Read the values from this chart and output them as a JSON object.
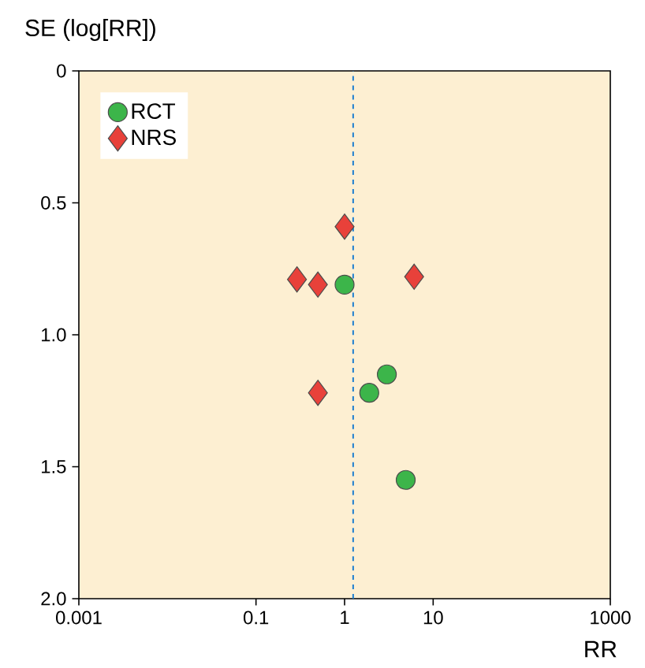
{
  "chart_data": {
    "type": "scatter",
    "xlabel": "RR",
    "ylabel": "SE (log[RR])",
    "log": "x",
    "xlim": [
      0.001,
      1000
    ],
    "ylim": [
      2,
      0
    ],
    "xticks": [
      0.001,
      0.1,
      1,
      10,
      1000
    ],
    "yticks": [
      0,
      0.5,
      {
        "value": 1,
        "label": "1.0"
      },
      1.5,
      {
        "value": 2,
        "label": "2.0"
      }
    ],
    "grid": false,
    "legend": "top left",
    "ref_lines": [
      {
        "axis": "x",
        "value": 1.25,
        "color": "#1f7fd0",
        "line_style": "dashed"
      }
    ],
    "series": [
      {
        "name": "RCT",
        "color": "#3cb54a",
        "marker": "circle",
        "x": [
          1.0,
          1.9,
          3.0,
          4.9
        ],
        "values": [
          0.81,
          1.22,
          1.15,
          1.55
        ]
      },
      {
        "name": "NRS",
        "color": "#e8413a",
        "marker": "diamond",
        "x": [
          1.0,
          0.29,
          0.5,
          6.1,
          0.5
        ],
        "values": [
          0.59,
          0.79,
          0.81,
          0.78,
          1.22
        ]
      }
    ]
  }
}
